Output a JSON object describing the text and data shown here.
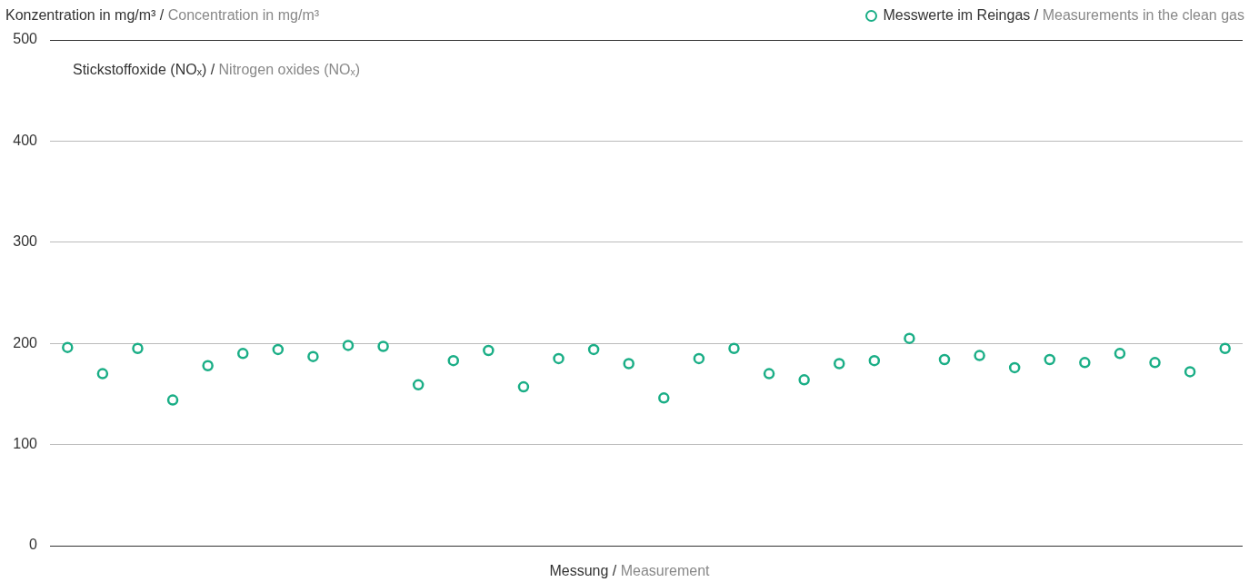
{
  "chart_data": {
    "type": "scatter",
    "ylabel": "Konzentration in mg/m³ / Concentration in mg/m³",
    "xlabel": "Messung / Measurement",
    "annotations": [
      "Stickstoffoxide (NOₓ) / Nitrogen oxides (NOₓ)"
    ],
    "categories": [
      null,
      null,
      null,
      null,
      null,
      null,
      null,
      null,
      null,
      null,
      null,
      null,
      null,
      null,
      null,
      null,
      null,
      null,
      null,
      null,
      null,
      null,
      null,
      null,
      null,
      null,
      null,
      null,
      null,
      null,
      null,
      null,
      null,
      null
    ],
    "series": [
      {
        "name": "Messwerte im Reingas / Measurements in the clean gas",
        "color": "#1aae86",
        "values": [
          196,
          170,
          195,
          144,
          178,
          190,
          194,
          187,
          198,
          197,
          159,
          183,
          193,
          157,
          185,
          194,
          180,
          146,
          185,
          195,
          170,
          164,
          180,
          183,
          205,
          184,
          188,
          176,
          184,
          181,
          190,
          181,
          172,
          195
        ]
      }
    ],
    "ylim": [
      0,
      500
    ],
    "yticks": [
      0,
      100,
      200,
      300,
      400,
      500
    ],
    "grid": "y",
    "legend": "top right",
    "marker": "circle",
    "tick_labels": "y"
  }
}
